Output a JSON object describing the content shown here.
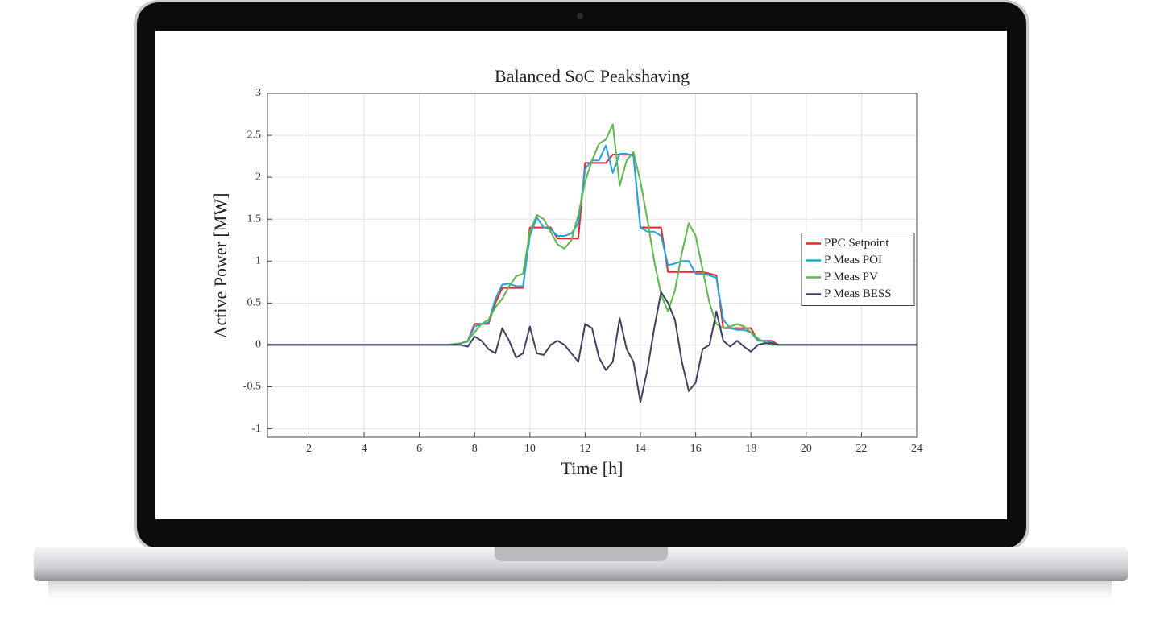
{
  "chart_data": {
    "type": "line",
    "title": "Balanced SoC Peakshaving",
    "x_label": "Time [h]",
    "y_label": "Active Power [MW]",
    "x": [
      0.5,
      6.5,
      7,
      7.25,
      7.5,
      7.75,
      8,
      8.25,
      8.5,
      8.75,
      9,
      9.25,
      9.5,
      9.75,
      10,
      10.25,
      10.5,
      10.75,
      11,
      11.25,
      11.5,
      11.75,
      12,
      12.25,
      12.5,
      12.75,
      13,
      13.25,
      13.5,
      13.75,
      14,
      14.25,
      14.5,
      14.75,
      15,
      15.25,
      15.5,
      15.75,
      16,
      16.25,
      16.5,
      16.75,
      17,
      17.25,
      17.5,
      17.75,
      18,
      18.25,
      18.5,
      18.75,
      19,
      19.5,
      24
    ],
    "series": [
      {
        "name": "PPC Setpoint",
        "color": "#e8262a",
        "values": [
          0,
          0,
          0,
          0.01,
          0.02,
          0.05,
          0.25,
          0.25,
          0.25,
          0.5,
          0.68,
          0.68,
          0.68,
          0.68,
          1.4,
          1.4,
          1.4,
          1.4,
          1.27,
          1.27,
          1.27,
          1.27,
          2.17,
          2.17,
          2.17,
          2.17,
          2.27,
          2.27,
          2.27,
          2.27,
          1.4,
          1.4,
          1.4,
          1.4,
          0.87,
          0.87,
          0.87,
          0.87,
          0.87,
          0.87,
          0.85,
          0.83,
          0.2,
          0.2,
          0.2,
          0.2,
          0.2,
          0.05,
          0.05,
          0.05,
          0,
          0,
          0
        ]
      },
      {
        "name": "P Meas POI",
        "color": "#1ea5dc",
        "values": [
          0,
          0,
          0,
          0.01,
          0.02,
          0.04,
          0.22,
          0.25,
          0.27,
          0.55,
          0.72,
          0.73,
          0.7,
          0.7,
          1.3,
          1.52,
          1.4,
          1.38,
          1.3,
          1.3,
          1.33,
          1.45,
          2.1,
          2.2,
          2.2,
          2.38,
          2.05,
          2.28,
          2.28,
          2.25,
          1.4,
          1.35,
          1.35,
          1.3,
          0.95,
          0.97,
          1.0,
          1.0,
          0.85,
          0.85,
          0.83,
          0.8,
          0.3,
          0.2,
          0.18,
          0.18,
          0.15,
          0.05,
          0.05,
          0.03,
          0,
          0,
          0
        ]
      },
      {
        "name": "P Meas PV",
        "color": "#5cb84a",
        "values": [
          0,
          0,
          0,
          0.01,
          0.02,
          0.05,
          0.15,
          0.25,
          0.3,
          0.45,
          0.55,
          0.7,
          0.82,
          0.85,
          1.35,
          1.55,
          1.5,
          1.35,
          1.2,
          1.15,
          1.25,
          1.55,
          1.95,
          2.2,
          2.4,
          2.45,
          2.63,
          1.9,
          2.2,
          2.3,
          1.95,
          1.5,
          1.0,
          0.6,
          0.4,
          0.65,
          1.1,
          1.45,
          1.3,
          0.9,
          0.5,
          0.25,
          0.2,
          0.22,
          0.25,
          0.22,
          0.15,
          0.08,
          0.03,
          0,
          0,
          0,
          0
        ]
      },
      {
        "name": "P Meas BESS",
        "color": "#3b4160",
        "values": [
          0,
          0,
          0,
          0,
          0,
          -0.02,
          0.1,
          0.05,
          -0.05,
          -0.1,
          0.2,
          0.05,
          -0.15,
          -0.1,
          0.22,
          -0.1,
          -0.12,
          0,
          0.05,
          0,
          -0.1,
          -0.2,
          0.25,
          0.2,
          -0.15,
          -0.3,
          -0.2,
          0.32,
          -0.05,
          -0.2,
          -0.68,
          -0.3,
          0.2,
          0.63,
          0.5,
          0.3,
          -0.2,
          -0.55,
          -0.45,
          -0.05,
          0,
          0.4,
          0.05,
          -0.02,
          0.05,
          -0.02,
          -0.08,
          0,
          0.02,
          0.02,
          0,
          0,
          0
        ]
      }
    ],
    "xlim": [
      0.5,
      24
    ],
    "ylim": [
      -1.1,
      3
    ],
    "xticks": [
      2,
      4,
      6,
      8,
      10,
      12,
      14,
      16,
      18,
      20,
      22,
      24
    ],
    "yticks": [
      -1,
      -0.5,
      0,
      0.5,
      1,
      1.5,
      2,
      2.5,
      3
    ],
    "grid": true,
    "legend": "right"
  }
}
